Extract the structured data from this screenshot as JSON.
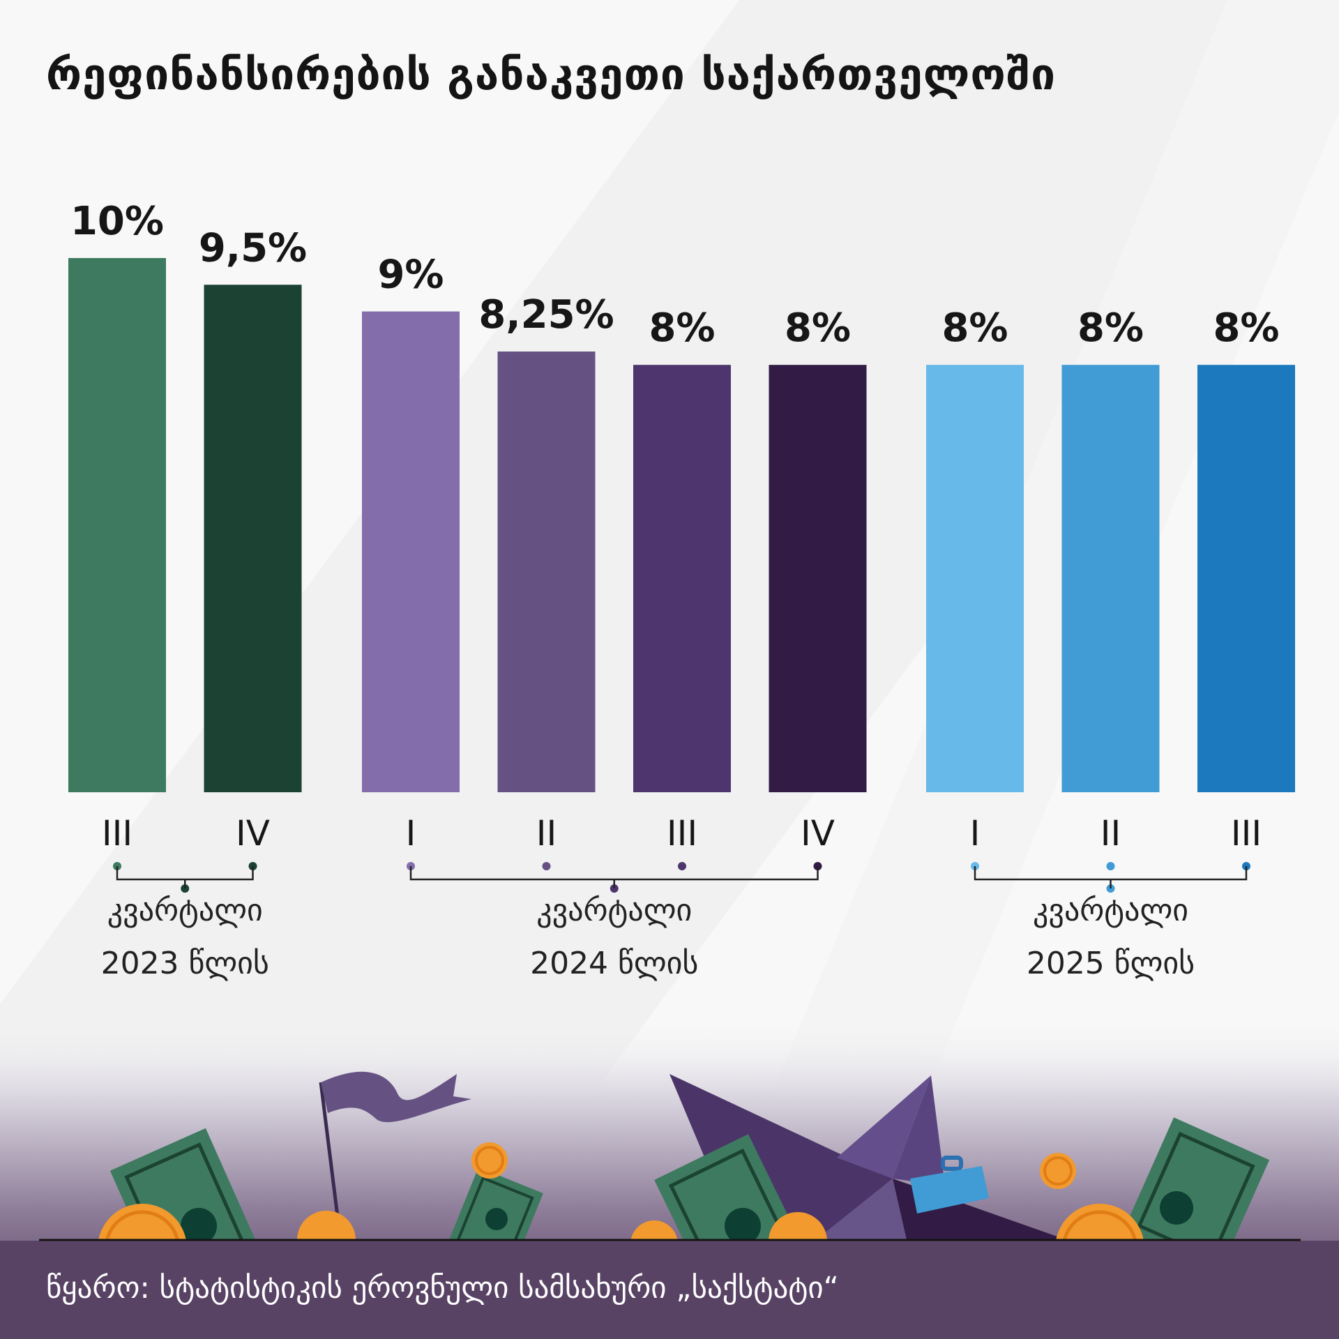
{
  "title": "რეფინანსირების განაკვეთი საქართველოში",
  "source": "წყარო: სტატისტიკის ეროვნული სამსახური „საქსტატი“",
  "chart_data": {
    "type": "bar",
    "title": "რეფინანსირების განაკვეთი საქართველოში",
    "unit": "%",
    "ylim": [
      0,
      10
    ],
    "grid": false,
    "groups": [
      {
        "label_line1": "კვარტალი",
        "label_line2": "2023 წლის",
        "categories": [
          "III",
          "IV"
        ],
        "values": [
          10,
          9.5
        ],
        "value_labels": [
          "10%",
          "9,5%"
        ],
        "colors": [
          "#3d7a5f",
          "#1b4232"
        ]
      },
      {
        "label_line1": "კვარტალი",
        "label_line2": "2024 წლის",
        "categories": [
          "I",
          "II",
          "III",
          "IV"
        ],
        "values": [
          9,
          8.25,
          8,
          8
        ],
        "value_labels": [
          "9%",
          "8,25%",
          "8%",
          "8%"
        ],
        "colors": [
          "#836daa",
          "#655283",
          "#4e356e",
          "#321b44"
        ]
      },
      {
        "label_line1": "კვარტალი",
        "label_line2": "2025 წლის",
        "categories": [
          "I",
          "II",
          "III"
        ],
        "values": [
          8,
          8,
          8
        ],
        "value_labels": [
          "8%",
          "8%",
          "8%"
        ],
        "colors": [
          "#66b9e8",
          "#419bd5",
          "#1c79bd"
        ]
      }
    ]
  }
}
